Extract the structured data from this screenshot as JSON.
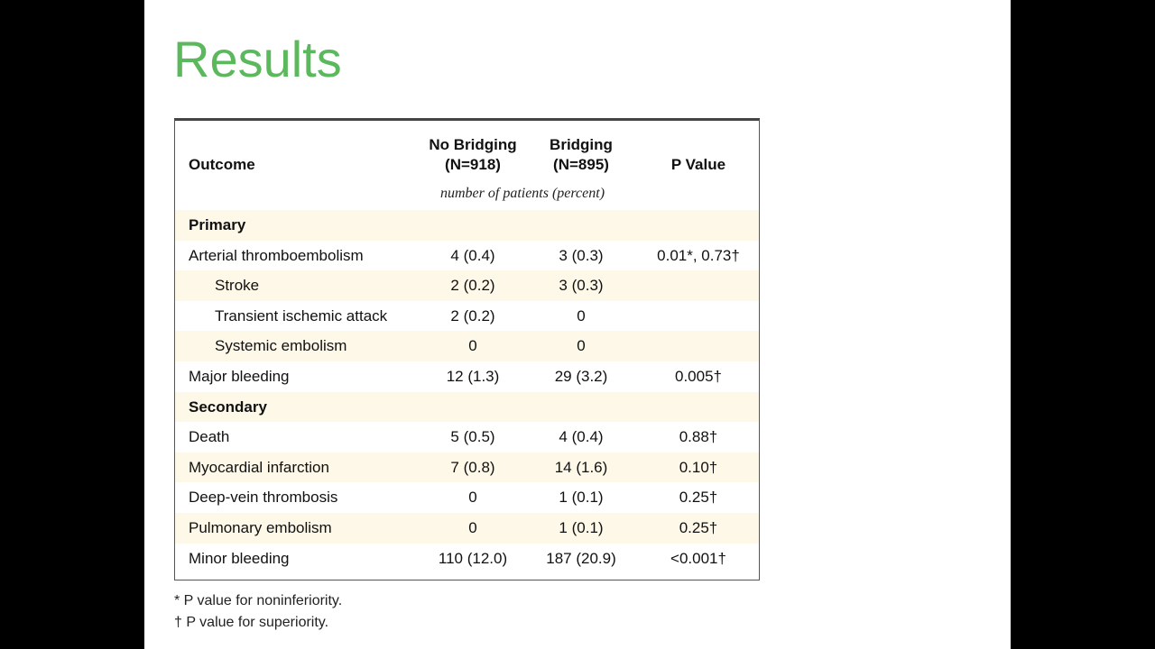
{
  "slide": {
    "title": "Results"
  },
  "table": {
    "headers": {
      "outcome": "Outcome",
      "no_bridging_line1": "No Bridging",
      "no_bridging_line2": "(N=918)",
      "bridging_line1": "Bridging",
      "bridging_line2": "(N=895)",
      "p_value": "P Value"
    },
    "units_note": "number of patients (percent)",
    "rows": [
      {
        "label": "Primary",
        "no_bridging": "",
        "bridging": "",
        "p_value": "",
        "kind": "section"
      },
      {
        "label": "Arterial thromboembolism",
        "no_bridging": "4 (0.4)",
        "bridging": "3 (0.3)",
        "p_value": "0.01*, 0.73†",
        "kind": "row"
      },
      {
        "label": "Stroke",
        "no_bridging": "2 (0.2)",
        "bridging": "3 (0.3)",
        "p_value": "",
        "kind": "indent"
      },
      {
        "label": "Transient ischemic attack",
        "no_bridging": "2 (0.2)",
        "bridging": "0",
        "p_value": "",
        "kind": "indent"
      },
      {
        "label": "Systemic embolism",
        "no_bridging": "0",
        "bridging": "0",
        "p_value": "",
        "kind": "indent"
      },
      {
        "label": "Major bleeding",
        "no_bridging": "12 (1.3)",
        "bridging": "29 (3.2)",
        "p_value": "0.005†",
        "kind": "row"
      },
      {
        "label": "Secondary",
        "no_bridging": "",
        "bridging": "",
        "p_value": "",
        "kind": "section"
      },
      {
        "label": "Death",
        "no_bridging": "5 (0.5)",
        "bridging": "4 (0.4)",
        "p_value": "0.88†",
        "kind": "row"
      },
      {
        "label": "Myocardial infarction",
        "no_bridging": "7 (0.8)",
        "bridging": "14 (1.6)",
        "p_value": "0.10†",
        "kind": "row"
      },
      {
        "label": "Deep-vein thrombosis",
        "no_bridging": "0",
        "bridging": "1 (0.1)",
        "p_value": "0.25†",
        "kind": "row"
      },
      {
        "label": "Pulmonary embolism",
        "no_bridging": "0",
        "bridging": "1 (0.1)",
        "p_value": "0.25†",
        "kind": "row"
      },
      {
        "label": "Minor bleeding",
        "no_bridging": "110 (12.0)",
        "bridging": "187 (20.9)",
        "p_value": "<0.001†",
        "kind": "row"
      }
    ]
  },
  "footnotes": [
    "* P value for noninferiority.",
    "† P value for superiority."
  ]
}
